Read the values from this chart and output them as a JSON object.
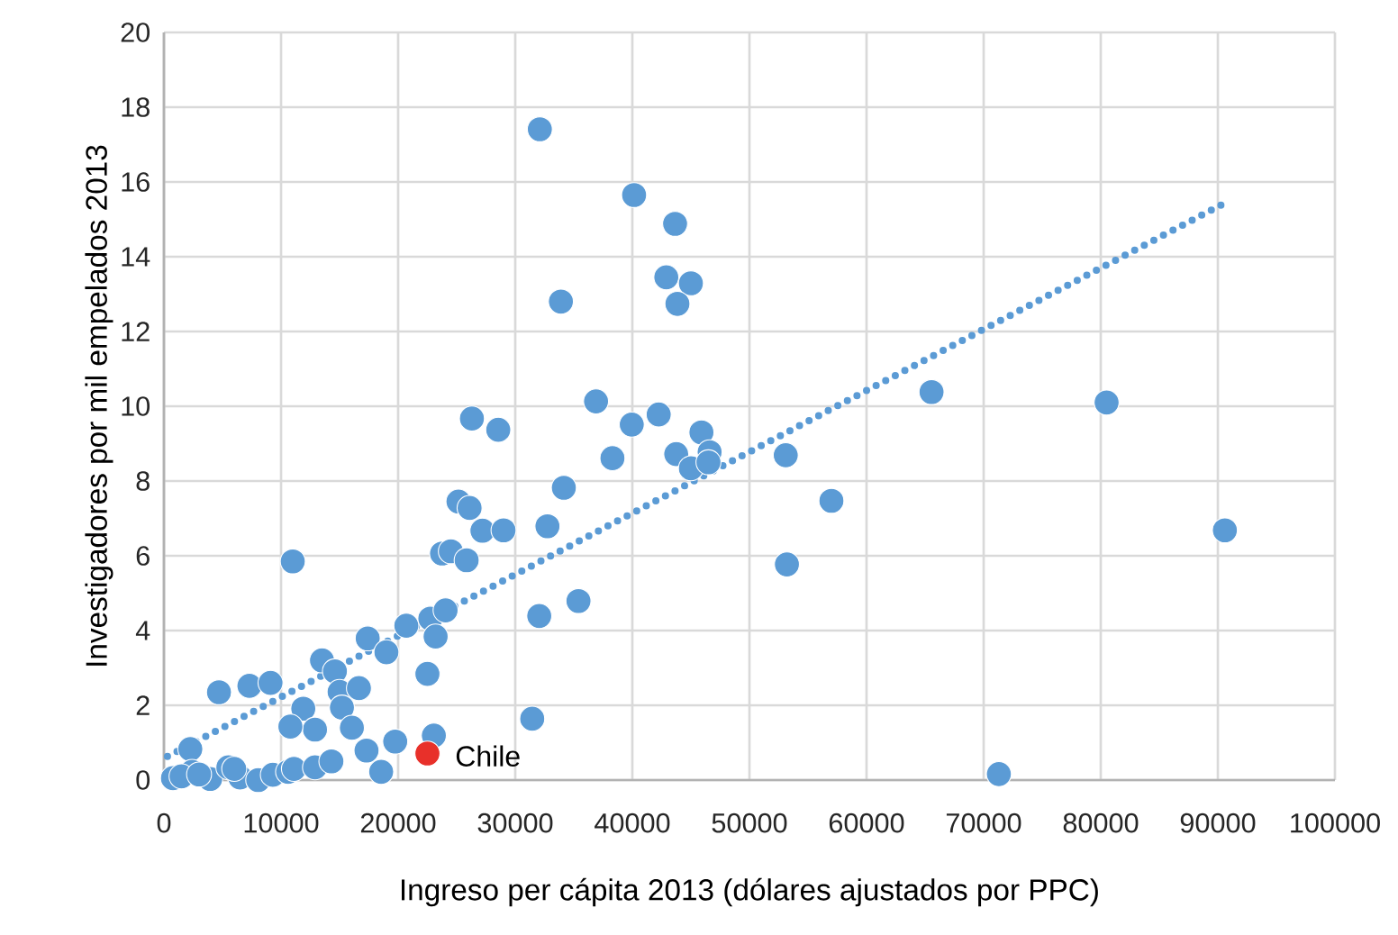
{
  "chart_data": {
    "type": "scatter",
    "xlabel": "Ingreso per cápita 2013 (dólares ajustados por PPC)",
    "ylabel": "Investigadores por mil empelados 2013",
    "xlim": [
      0,
      100000
    ],
    "ylim": [
      0,
      20
    ],
    "xticks": [
      0,
      10000,
      20000,
      30000,
      40000,
      50000,
      60000,
      70000,
      80000,
      90000,
      100000
    ],
    "yticks": [
      0,
      2,
      4,
      6,
      8,
      10,
      12,
      14,
      16,
      18,
      20
    ],
    "grid": true,
    "marker": "circle",
    "series": [
      {
        "color": "#5b9bd5",
        "x": [
          32100,
          40150,
          43650,
          42900,
          45000,
          43850,
          33900,
          36900,
          39950,
          42250,
          45900,
          38300,
          43750,
          46600,
          45000,
          46500,
          53100,
          65550,
          57000,
          34150,
          32750,
          53200,
          32050,
          35400,
          80500,
          90600,
          71300,
          26300,
          28550,
          25150,
          26100,
          27200,
          29000,
          23750,
          24500,
          25850,
          11000,
          4700,
          7300,
          9100,
          2250,
          770,
          2400,
          3950,
          5500,
          6500,
          8050,
          9300,
          10600,
          11100,
          12900,
          14300,
          17300,
          18550,
          19750,
          23050,
          22500,
          31450,
          20700,
          17400,
          19000,
          22750,
          24050,
          23200,
          13500,
          14600,
          15000,
          16650,
          11900,
          12900,
          10800,
          15200,
          16050,
          1500,
          3000,
          6000
        ],
        "values": [
          17.41,
          15.65,
          14.88,
          13.45,
          13.29,
          12.74,
          12.8,
          10.13,
          9.51,
          9.78,
          9.3,
          8.61,
          8.72,
          8.77,
          8.34,
          8.5,
          8.69,
          10.38,
          7.47,
          7.82,
          6.79,
          5.77,
          4.39,
          4.79,
          10.1,
          6.68,
          0.16,
          9.67,
          9.37,
          7.45,
          7.28,
          6.67,
          6.68,
          6.06,
          6.12,
          5.88,
          5.85,
          2.35,
          2.52,
          2.6,
          0.83,
          0.05,
          0.22,
          0.03,
          0.34,
          0.07,
          0,
          0.14,
          0.22,
          0.3,
          0.34,
          0.5,
          0.79,
          0.22,
          1.03,
          1.19,
          2.84,
          1.64,
          4.13,
          3.79,
          3.42,
          4.32,
          4.54,
          3.84,
          3.2,
          2.91,
          2.36,
          2.46,
          1.91,
          1.35,
          1.43,
          1.94,
          1.4,
          0.1,
          0.15,
          0.3
        ]
      },
      {
        "color": "#e8302a",
        "x": [
          22500
        ],
        "values": [
          0.71
        ]
      },
      {
        "type": "line",
        "color": "#5b9bd5",
        "marker": "none",
        "line_style": "dotted",
        "x": [
          300,
          90500
        ],
        "values": [
          0.63,
          15.42
        ]
      }
    ],
    "annotations": [
      {
        "text": "Chile",
        "x": 22500,
        "y": 0.71
      }
    ]
  }
}
